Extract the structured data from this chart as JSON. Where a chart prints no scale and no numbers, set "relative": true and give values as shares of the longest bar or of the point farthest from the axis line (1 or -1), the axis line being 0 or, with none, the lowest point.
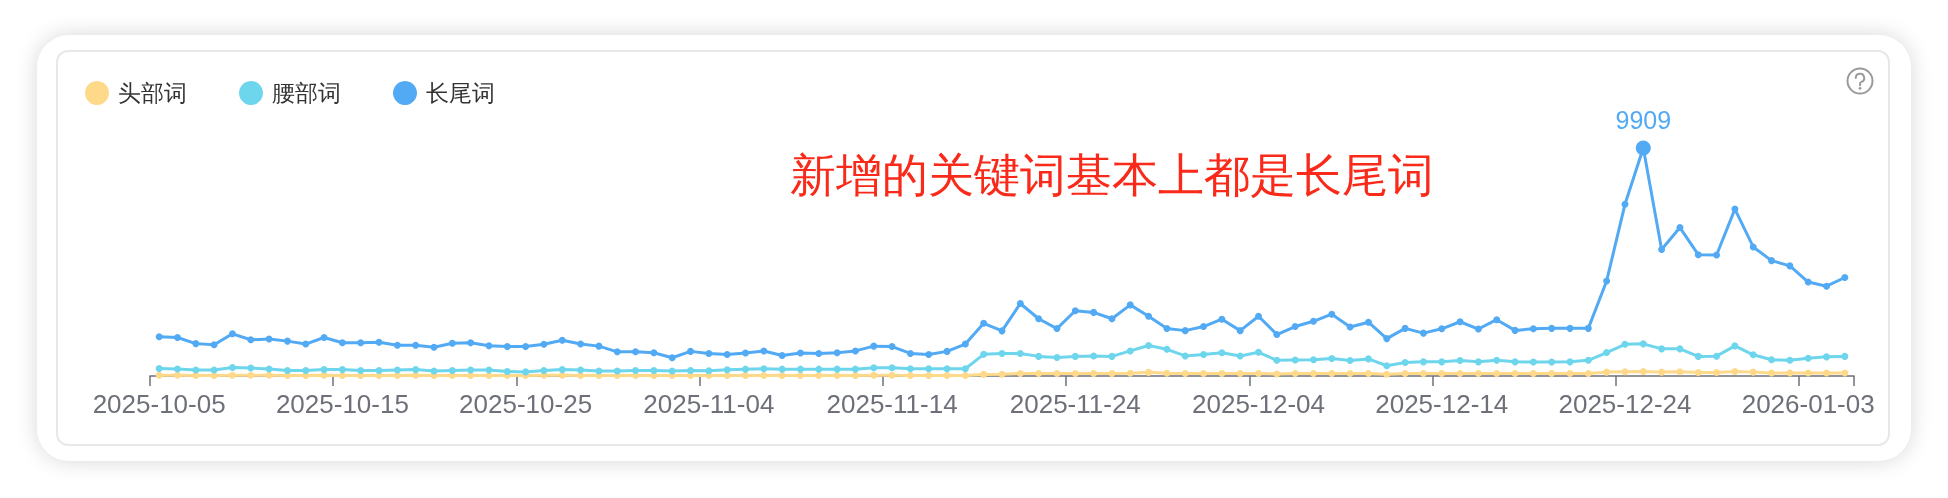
{
  "chart_data": {
    "type": "line",
    "relative": true,
    "categories": [
      "2025-10-05",
      null,
      null,
      null,
      null,
      null,
      null,
      null,
      null,
      null,
      "2025-10-15",
      null,
      null,
      null,
      null,
      null,
      null,
      null,
      null,
      null,
      "2025-10-25",
      null,
      null,
      null,
      null,
      null,
      null,
      null,
      null,
      null,
      "2025-11-04",
      null,
      null,
      null,
      null,
      null,
      null,
      null,
      null,
      null,
      "2025-11-14",
      null,
      null,
      null,
      null,
      null,
      null,
      null,
      null,
      null,
      "2025-11-24",
      null,
      null,
      null,
      null,
      null,
      null,
      null,
      null,
      null,
      "2025-12-04",
      null,
      null,
      null,
      null,
      null,
      null,
      null,
      null,
      null,
      "2025-12-14",
      null,
      null,
      null,
      null,
      null,
      null,
      null,
      null,
      null,
      "2025-12-24",
      null,
      null,
      null,
      null,
      null,
      null,
      null,
      null,
      null,
      "2026-01-03",
      null,
      null
    ],
    "series": [
      {
        "name": "头部词",
        "color": "#ffd98a",
        "values": [
          0.003,
          0.003,
          0.002,
          0.002,
          0.003,
          0.003,
          0.003,
          0.002,
          0.002,
          0.003,
          0.002,
          0.002,
          0.002,
          0.002,
          0.003,
          0.002,
          0.002,
          0.002,
          0.002,
          0.002,
          0.002,
          0.003,
          0.003,
          0.002,
          0.002,
          0.002,
          0.002,
          0.002,
          0.002,
          0.002,
          0.002,
          0.002,
          0.002,
          0.002,
          0.002,
          0.002,
          0.002,
          0.002,
          0.002,
          0.003,
          0.003,
          0.002,
          0.002,
          0.002,
          0.002,
          0.007,
          0.008,
          0.011,
          0.011,
          0.011,
          0.011,
          0.011,
          0.011,
          0.012,
          0.016,
          0.012,
          0.011,
          0.011,
          0.011,
          0.011,
          0.011,
          0.009,
          0.011,
          0.011,
          0.011,
          0.011,
          0.011,
          0.008,
          0.011,
          0.011,
          0.011,
          0.011,
          0.011,
          0.011,
          0.011,
          0.011,
          0.011,
          0.011,
          0.011,
          0.017,
          0.019,
          0.02,
          0.017,
          0.019,
          0.015,
          0.015,
          0.02,
          0.017,
          0.013,
          0.013,
          0.013,
          0.013,
          0.013
        ]
      },
      {
        "name": "腰部词",
        "color": "#6dd5ec",
        "values": [
          0.033,
          0.031,
          0.026,
          0.026,
          0.037,
          0.035,
          0.031,
          0.024,
          0.024,
          0.028,
          0.028,
          0.024,
          0.024,
          0.026,
          0.028,
          0.022,
          0.024,
          0.026,
          0.026,
          0.02,
          0.018,
          0.024,
          0.028,
          0.026,
          0.022,
          0.022,
          0.024,
          0.024,
          0.022,
          0.024,
          0.023,
          0.027,
          0.03,
          0.032,
          0.03,
          0.03,
          0.03,
          0.03,
          0.03,
          0.036,
          0.036,
          0.032,
          0.032,
          0.032,
          0.032,
          0.095,
          0.099,
          0.099,
          0.086,
          0.081,
          0.086,
          0.088,
          0.086,
          0.11,
          0.134,
          0.117,
          0.088,
          0.094,
          0.102,
          0.088,
          0.104,
          0.069,
          0.07,
          0.071,
          0.077,
          0.068,
          0.075,
          0.045,
          0.059,
          0.062,
          0.062,
          0.068,
          0.062,
          0.069,
          0.062,
          0.061,
          0.061,
          0.062,
          0.069,
          0.103,
          0.139,
          0.141,
          0.119,
          0.119,
          0.086,
          0.087,
          0.132,
          0.093,
          0.071,
          0.069,
          0.078,
          0.084,
          0.086
        ]
      },
      {
        "name": "长尾词",
        "color": "#52aaf4",
        "values": [
          0.172,
          0.169,
          0.142,
          0.137,
          0.185,
          0.159,
          0.162,
          0.153,
          0.14,
          0.169,
          0.146,
          0.146,
          0.148,
          0.135,
          0.135,
          0.126,
          0.144,
          0.146,
          0.133,
          0.129,
          0.129,
          0.139,
          0.157,
          0.14,
          0.131,
          0.106,
          0.106,
          0.102,
          0.08,
          0.108,
          0.099,
          0.094,
          0.101,
          0.11,
          0.09,
          0.101,
          0.099,
          0.102,
          0.11,
          0.131,
          0.129,
          0.099,
          0.094,
          0.108,
          0.14,
          0.231,
          0.198,
          0.318,
          0.251,
          0.208,
          0.286,
          0.279,
          0.251,
          0.312,
          0.262,
          0.208,
          0.199,
          0.217,
          0.249,
          0.199,
          0.262,
          0.182,
          0.217,
          0.24,
          0.271,
          0.215,
          0.236,
          0.164,
          0.209,
          0.188,
          0.207,
          0.238,
          0.206,
          0.247,
          0.2,
          0.207,
          0.209,
          0.209,
          0.209,
          0.417,
          0.753,
          1,
          0.555,
          0.651,
          0.532,
          0.531,
          0.732,
          0.566,
          0.506,
          0.483,
          0.412,
          0.394,
          0.432
        ]
      }
    ],
    "annotations": [
      "新增的关键词基本上都是长尾词",
      {
        "text": "9909",
        "y": 1
      }
    ],
    "legend": "top left",
    "grid": false,
    "marker": "circle",
    "line_style": "solid",
    "tick_labels": "x"
  }
}
